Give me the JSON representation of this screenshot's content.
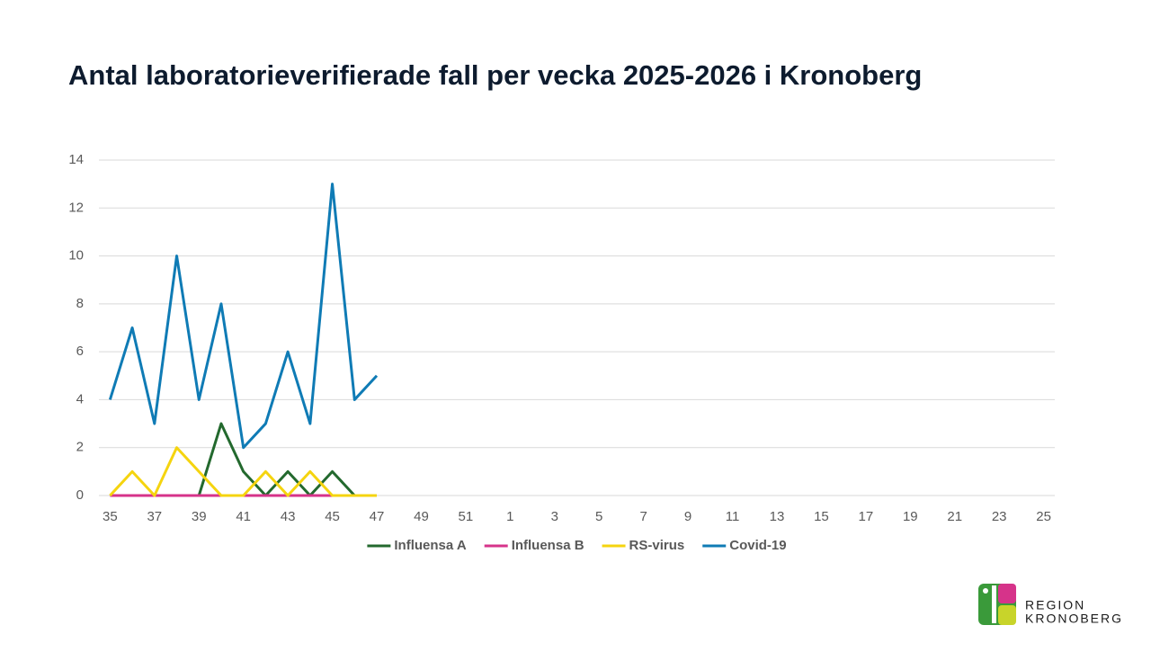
{
  "chart_data": {
    "type": "line",
    "title": "Antal laboratorieverifierade fall per vecka 2025-2026  i Kronoberg",
    "categories": [
      35,
      null,
      37,
      null,
      39,
      null,
      41,
      null,
      43,
      null,
      45,
      null,
      47,
      null,
      49,
      null,
      51,
      null,
      1,
      null,
      3,
      null,
      5,
      null,
      7,
      null,
      9,
      null,
      11,
      null,
      13,
      null,
      15,
      null,
      17,
      null,
      19,
      null,
      21,
      null,
      23,
      null,
      25
    ],
    "series": [
      {
        "name": "Influensa A",
        "color": "#23692e",
        "values": [
          null,
          null,
          null,
          null,
          0,
          3,
          1,
          0,
          1,
          0,
          1,
          0,
          null,
          null,
          null,
          null,
          null,
          null,
          null,
          null,
          null,
          null,
          null,
          null,
          null,
          null,
          null,
          null,
          null,
          null,
          null,
          null,
          null,
          null,
          null,
          null,
          null,
          null,
          null,
          null,
          null,
          null,
          null
        ]
      },
      {
        "name": "Influensa B",
        "color": "#d6338a",
        "values": [
          0,
          0,
          0,
          0,
          0,
          0,
          0,
          0,
          0,
          0,
          0,
          null,
          null,
          null,
          null,
          null,
          null,
          null,
          null,
          null,
          null,
          null,
          null,
          null,
          null,
          null,
          null,
          null,
          null,
          null,
          null,
          null,
          null,
          null,
          null,
          null,
          null,
          null,
          null,
          null,
          null,
          null,
          null
        ]
      },
      {
        "name": "RS-virus",
        "color": "#f5d40f",
        "values": [
          0,
          1,
          0,
          2,
          1,
          0,
          0,
          1,
          0,
          1,
          0,
          0,
          0,
          null,
          null,
          null,
          null,
          null,
          null,
          null,
          null,
          null,
          null,
          null,
          null,
          null,
          null,
          null,
          null,
          null,
          null,
          null,
          null,
          null,
          null,
          null,
          null,
          null,
          null,
          null,
          null,
          null,
          null
        ]
      },
      {
        "name": "Covid-19",
        "color": "#0f7bb5",
        "values": [
          4,
          7,
          3,
          10,
          4,
          8,
          2,
          3,
          6,
          3,
          13,
          4,
          5,
          null,
          null,
          null,
          null,
          null,
          null,
          null,
          null,
          null,
          null,
          null,
          null,
          null,
          null,
          null,
          null,
          null,
          null,
          null,
          null,
          null,
          null,
          null,
          null,
          null,
          null,
          null,
          null,
          null,
          null
        ]
      }
    ],
    "ylim": [
      0,
      14
    ],
    "yticks": [
      0,
      2,
      4,
      6,
      8,
      10,
      12,
      14
    ],
    "grid": true,
    "legend": "bottom"
  },
  "logo": {
    "line1": "REGION",
    "line2": "KRONOBERG"
  }
}
